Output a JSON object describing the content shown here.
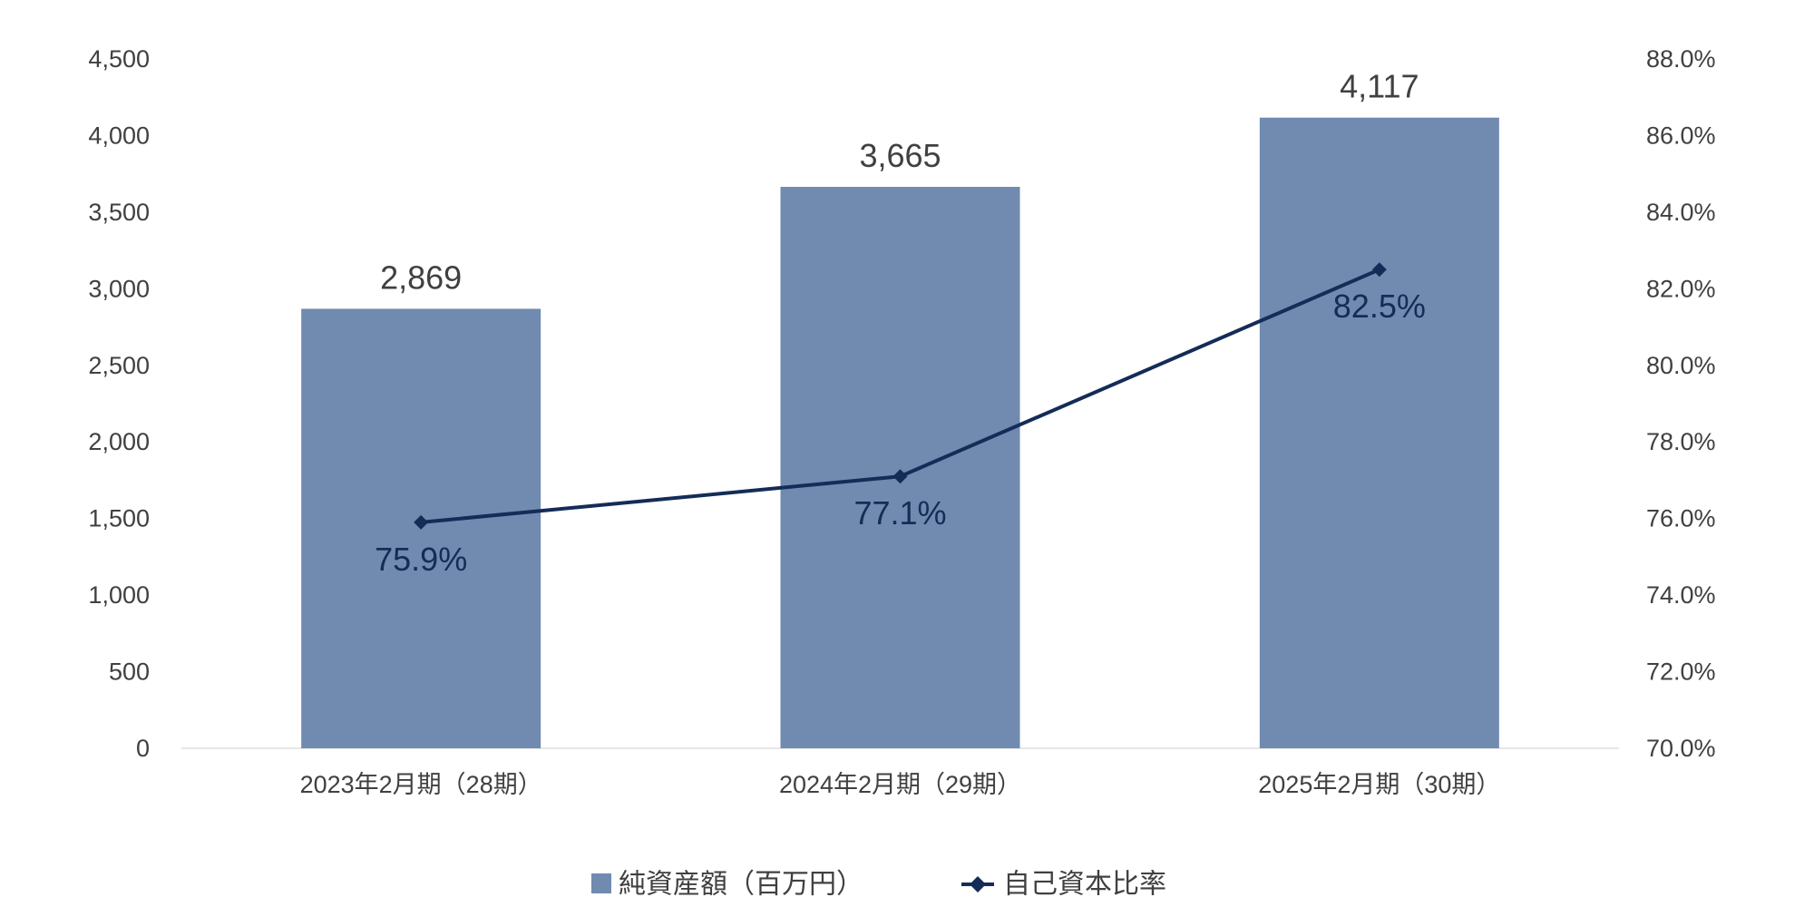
{
  "chart_data": {
    "type": "bar",
    "title": "",
    "categories": [
      "2023年2月期（28期）",
      "2024年2月期（29期）",
      "2025年2月期（30期）"
    ],
    "series": [
      {
        "name": "純資産額（百万円）",
        "kind": "bar",
        "axis": "left",
        "values": [
          2869,
          3665,
          4117
        ],
        "labels": [
          "2,869",
          "3,665",
          "4,117"
        ],
        "color": "#708AB0"
      },
      {
        "name": "自己資本比率",
        "kind": "line",
        "axis": "right",
        "marker": "diamond",
        "values": [
          75.9,
          77.1,
          82.5
        ],
        "labels": [
          "75.9%",
          "77.1%",
          "82.5%"
        ],
        "color": "#142C57"
      }
    ],
    "left_axis": {
      "ylim": [
        0,
        4500
      ],
      "ticks": [
        "0",
        "500",
        "1,000",
        "1,500",
        "2,000",
        "2,500",
        "3,000",
        "3,500",
        "4,000",
        "4,500"
      ]
    },
    "right_axis": {
      "ylim": [
        70,
        88
      ],
      "ticks": [
        "70.0%",
        "72.0%",
        "74.0%",
        "76.0%",
        "78.0%",
        "80.0%",
        "82.0%",
        "84.0%",
        "86.0%",
        "88.0%"
      ]
    },
    "grid": false,
    "legend": "bottom-center"
  }
}
